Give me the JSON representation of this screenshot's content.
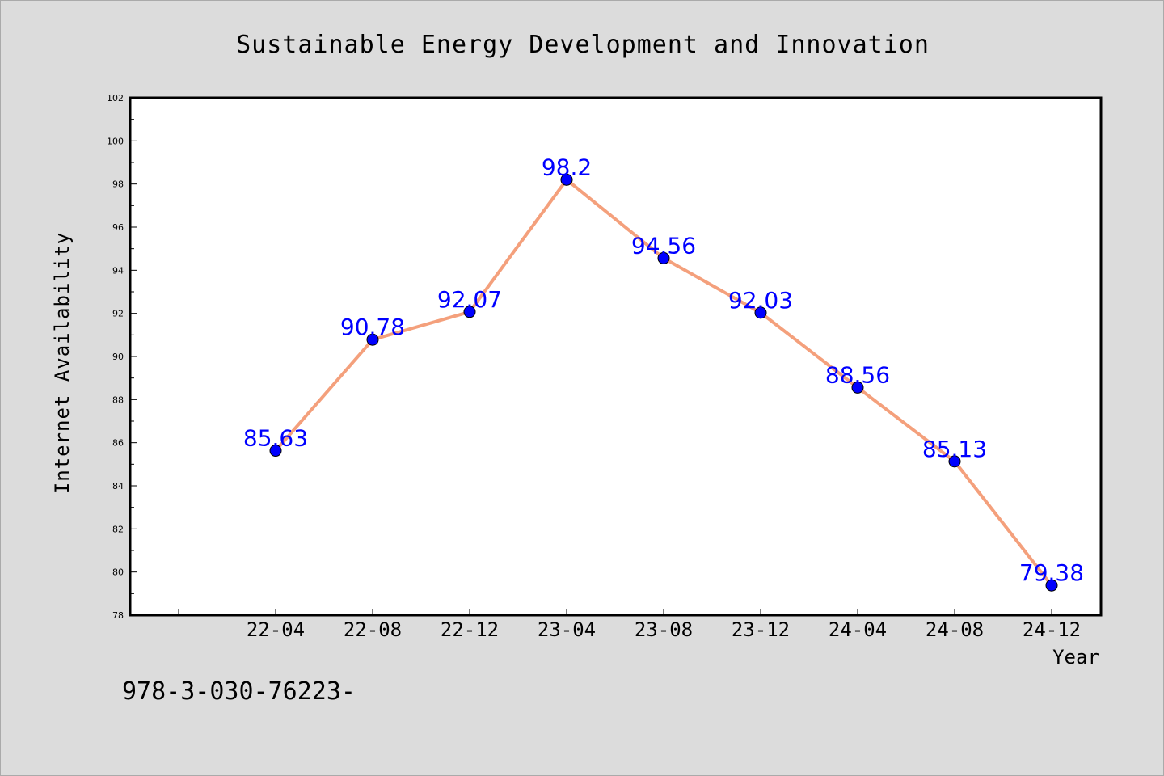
{
  "chart_data": {
    "type": "line",
    "title": "Sustainable Energy Development and Innovation",
    "xlabel": "Year",
    "ylabel": "Internet Availability",
    "categories": [
      "22-04",
      "22-08",
      "22-12",
      "23-04",
      "23-08",
      "23-12",
      "24-04",
      "24-08",
      "24-12"
    ],
    "series": [
      {
        "values": [
          85.63,
          90.78,
          92.07,
          98.2,
          94.56,
          92.03,
          88.56,
          85.13,
          79.38
        ],
        "line_color": "#f4a07c",
        "marker_color": "#0000ff",
        "label_color": "#0000ff"
      }
    ],
    "data_labels": [
      "85.63",
      "90.78",
      "92.07",
      "98.2",
      "94.56",
      "92.03",
      "88.56",
      "85.13",
      "79.38"
    ],
    "ylim": [
      78,
      102
    ],
    "yticks": [
      "78",
      "80",
      "82",
      "84",
      "86",
      "88",
      "90",
      "92",
      "94",
      "96",
      "98",
      "100",
      "102"
    ],
    "grid": false,
    "legend": "none"
  },
  "footer": {
    "code_text": "978-3-030-76223-"
  }
}
